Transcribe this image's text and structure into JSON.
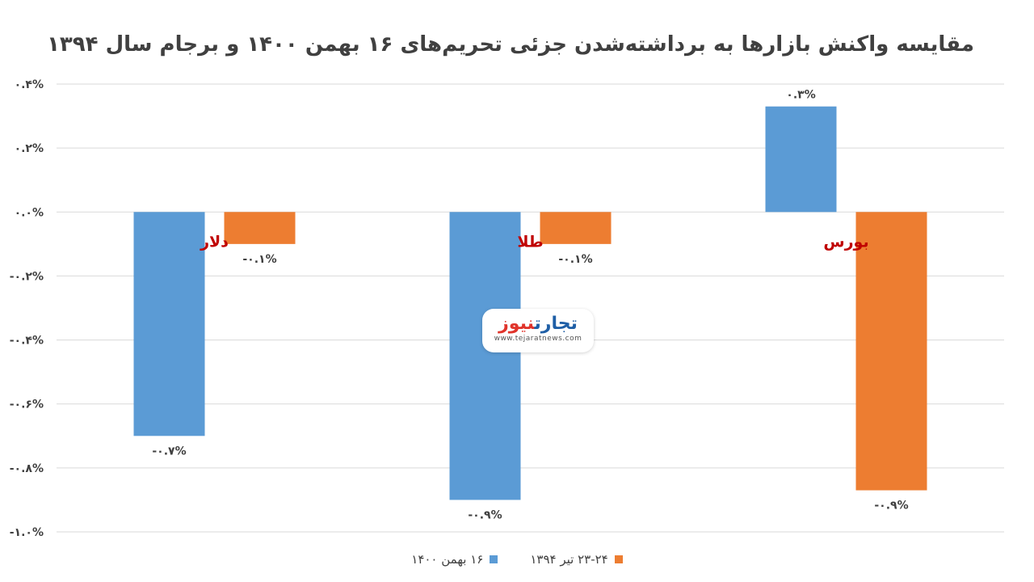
{
  "chart_data": {
    "type": "bar",
    "title": "مقایسه واکنش بازارها به برداشته‌شدن جزئی تحریم‌های ۱۶ بهمن ۱۴۰۰ و برجام سال ۱۳۹۴",
    "categories": [
      "دلار",
      "طلا",
      "بورس"
    ],
    "series": [
      {
        "name": "۱۶ بهمن ۱۴۰۰",
        "color": "#5b9bd5",
        "values": [
          -0.7,
          -0.9,
          0.33
        ],
        "labels": [
          "-۰.۷%",
          "-۰.۹%",
          "۰.۳%"
        ]
      },
      {
        "name": "۲۳-۲۴ تیر ۱۳۹۴",
        "color": "#ed7d31",
        "values": [
          -0.1,
          -0.1,
          -0.87
        ],
        "labels": [
          "-۰.۱%",
          "-۰.۱%",
          "-۰.۹%"
        ]
      }
    ],
    "ylim": [
      -1.0,
      0.4
    ],
    "yticks": [
      0.4,
      0.2,
      0.0,
      -0.2,
      -0.4,
      -0.6,
      -0.8,
      -1.0
    ],
    "ytick_labels": [
      "۰.۴%",
      "۰.۲%",
      "۰.۰%",
      "-۰.۲%",
      "-۰.۴%",
      "-۰.۶%",
      "-۰.۸%",
      "-۱.۰%"
    ],
    "category_label_color": "#c00000",
    "grid": true,
    "legend": "bottom"
  },
  "watermark": {
    "brand_a": "تجارت",
    "brand_b": "نیوز",
    "url": "www.tejaratnews.com"
  }
}
